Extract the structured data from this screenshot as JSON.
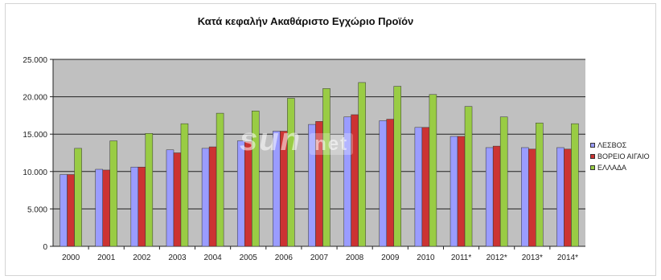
{
  "colors": {
    "plot_bg": "#c0c0c0",
    "lesvos": "#9a9cff",
    "voreio_aigaio": "#cc3333",
    "ellada": "#99cc44"
  },
  "watermark": {
    "main": "sun",
    "suffix": "net"
  },
  "chart_data": {
    "type": "bar",
    "title": "Κατά κεφαλήν Ακαθάριστο  Εγχώριο Προϊόν",
    "xlabel": "",
    "ylabel": "",
    "ylim": [
      0,
      25000
    ],
    "yticks": [
      0,
      5000,
      10000,
      15000,
      20000,
      25000
    ],
    "ytick_labels": [
      "0",
      "5.000",
      "10.000",
      "15.000",
      "20.000",
      "25.000"
    ],
    "grid": true,
    "legend_position": "right",
    "categories": [
      "2000",
      "2001",
      "2002",
      "2003",
      "2004",
      "2005",
      "2006",
      "2007",
      "2008",
      "2009",
      "2010",
      "2011*",
      "2012*",
      "2013*",
      "2014*"
    ],
    "series": [
      {
        "name": "ΛΕΣΒΟΣ",
        "color_key": "lesvos",
        "values": [
          9600,
          10300,
          10600,
          12900,
          13100,
          14100,
          15400,
          16300,
          17300,
          16800,
          15900,
          14700,
          13200,
          13200,
          13200
        ]
      },
      {
        "name": "ΒΟΡΕΙΟ ΑΙΓΑΙΟ",
        "color_key": "voreio_aigaio",
        "values": [
          9600,
          10200,
          10600,
          12500,
          13300,
          14000,
          15400,
          16700,
          17600,
          17000,
          15900,
          14700,
          13400,
          13000,
          13000
        ]
      },
      {
        "name": "ΕΛΛΑΔΑ",
        "color_key": "ellada",
        "values": [
          13100,
          14100,
          15100,
          16400,
          17800,
          18100,
          19800,
          21100,
          21900,
          21400,
          20300,
          18700,
          17300,
          16500,
          16400
        ]
      }
    ]
  }
}
